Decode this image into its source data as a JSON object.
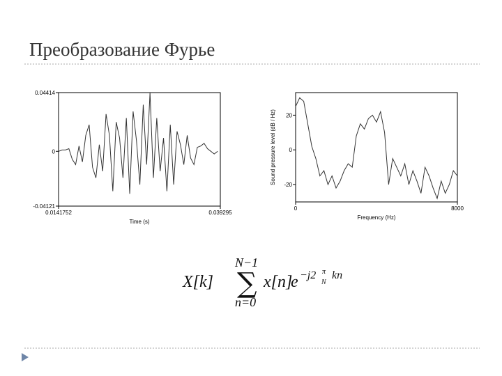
{
  "slide_title": "Преобразование Фурье",
  "chart_data": [
    {
      "type": "line",
      "xlabel": "Time (s)",
      "color": "#333333",
      "x": [
        0.0142,
        0.014725,
        0.01525,
        0.015775,
        0.0163,
        0.016825,
        0.01735,
        0.017875,
        0.0184,
        0.018925,
        0.01945,
        0.019975,
        0.0205,
        0.021025,
        0.02155,
        0.022075,
        0.0226,
        0.023125,
        0.02365,
        0.024175,
        0.0247,
        0.025225,
        0.02575,
        0.026275,
        0.0268,
        0.027325,
        0.02785,
        0.028375,
        0.0289,
        0.029425,
        0.02995,
        0.030475,
        0.031,
        0.031525,
        0.03205,
        0.032575,
        0.0331,
        0.033625,
        0.03415,
        0.034675,
        0.0352,
        0.035725,
        0.03625,
        0.036775,
        0.0373,
        0.037825,
        0.03835,
        0.038875
      ],
      "values": [
        0,
        0.001,
        0.001,
        0.002,
        -0.006,
        -0.01,
        0.004,
        -0.008,
        0.012,
        0.02,
        -0.012,
        -0.02,
        0.005,
        -0.015,
        0.028,
        0.012,
        -0.03,
        0.022,
        0.01,
        -0.02,
        0.025,
        -0.032,
        0.03,
        0.008,
        -0.025,
        0.035,
        -0.01,
        0.044,
        -0.02,
        0.025,
        -0.015,
        0.01,
        -0.03,
        0.02,
        -0.025,
        0.015,
        0.005,
        -0.01,
        0.012,
        -0.005,
        -0.01,
        0.003,
        0.004,
        0.006,
        0.002,
        0,
        -0.002,
        0
      ],
      "xlim": [
        0.0141752,
        0.039295
      ],
      "xticks": [
        0.0141752,
        0.039295
      ],
      "ylim": [
        -0.04121,
        0.04414
      ],
      "yticks": [
        -0.04121,
        0,
        0.04414
      ]
    },
    {
      "type": "line",
      "xlabel": "Frequency (Hz)",
      "ylabel": "Sound pressure level (dB / Hz)",
      "color": "#333333",
      "x": [
        0,
        200,
        400,
        600,
        800,
        1000,
        1200,
        1400,
        1600,
        1800,
        2000,
        2200,
        2400,
        2600,
        2800,
        3000,
        3200,
        3400,
        3600,
        3800,
        4000,
        4200,
        4400,
        4600,
        4800,
        5000,
        5200,
        5400,
        5600,
        5800,
        6000,
        6200,
        6400,
        6600,
        6800,
        7000,
        7200,
        7400,
        7600,
        7800,
        8000
      ],
      "values": [
        25,
        30,
        28,
        15,
        2,
        -5,
        -15,
        -12,
        -20,
        -15,
        -22,
        -18,
        -12,
        -8,
        -10,
        8,
        15,
        12,
        18,
        20,
        16,
        22,
        10,
        -20,
        -5,
        -10,
        -15,
        -8,
        -20,
        -12,
        -18,
        -25,
        -10,
        -15,
        -22,
        -28,
        -18,
        -25,
        -20,
        -12,
        -15
      ],
      "xlim": [
        0,
        8000
      ],
      "xticks": [
        0,
        8000
      ],
      "ylim": [
        -30,
        33
      ],
      "yticks": [
        -20,
        0,
        20
      ]
    }
  ],
  "formula": {
    "lhs": "X[k]",
    "upper": "N−1",
    "sum": "∑",
    "lower": "n=0",
    "term": "x[n]",
    "base": "e",
    "exp": "−j2",
    "frac_num": "π",
    "frac_den": "N",
    "exp_tail": "kn"
  }
}
